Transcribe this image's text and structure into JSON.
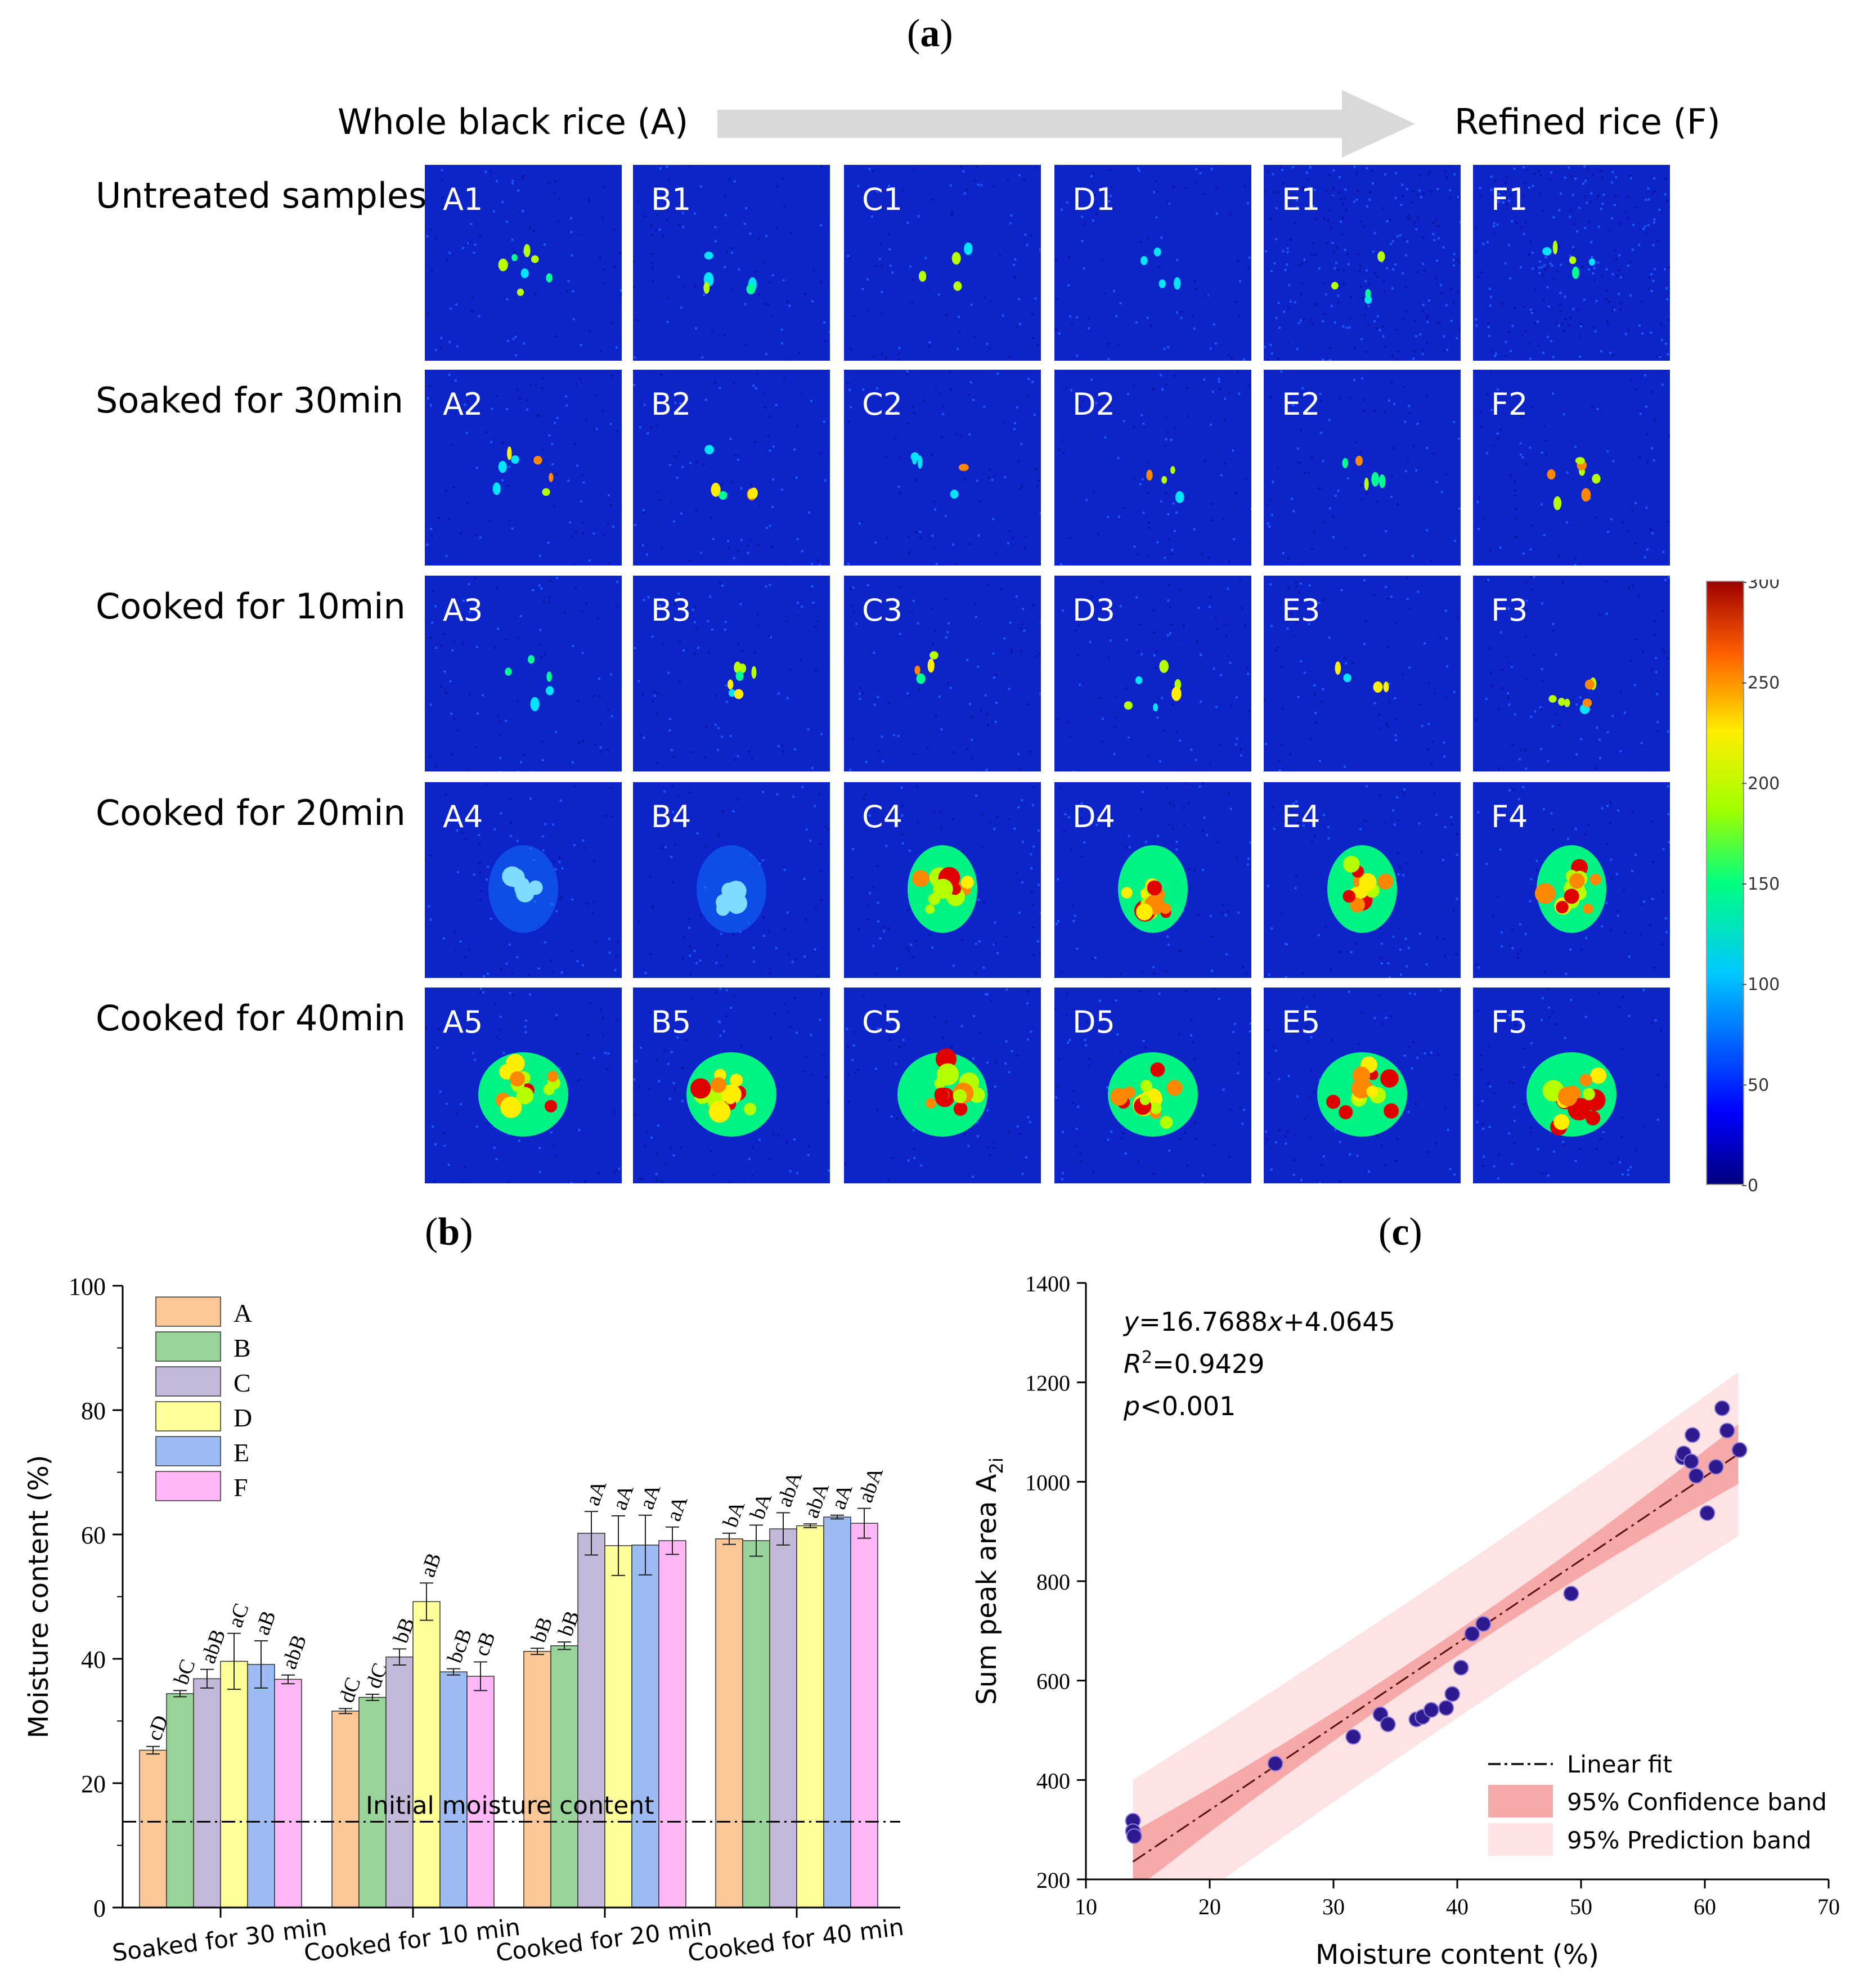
{
  "panel_a": {
    "letter": "a",
    "start_label": "Whole black rice (A)",
    "end_label": "Refined rice (F)",
    "row_labels": [
      "Untreated samples",
      "Soaked for 30min",
      "Cooked for 10min",
      "Cooked for 20min",
      "Cooked for 40min"
    ],
    "column_letters": [
      "A",
      "B",
      "C",
      "D",
      "E",
      "F"
    ],
    "tiles": [
      [
        "A1",
        "B1",
        "C1",
        "D1",
        "E1",
        "F1"
      ],
      [
        "A2",
        "B2",
        "C2",
        "D2",
        "E2",
        "F2"
      ],
      [
        "A3",
        "B3",
        "C3",
        "D3",
        "E3",
        "F3"
      ],
      [
        "A4",
        "B4",
        "C4",
        "D4",
        "E4",
        "F4"
      ],
      [
        "A5",
        "B5",
        "C5",
        "D5",
        "E5",
        "F5"
      ]
    ],
    "colorbar_ticks": [
      "300",
      "250",
      "200",
      "150",
      "100",
      "50",
      "0"
    ],
    "colorbar_range": [
      0,
      300
    ],
    "colors": {
      "background": "#0d24c8",
      "arrow": "#d9d9d9"
    }
  },
  "chart_data": [
    {
      "type": "bar",
      "panel": "b",
      "ylabel": "Moisture content (%)",
      "ylim": [
        0,
        100
      ],
      "yticks": [
        "0",
        "20",
        "40",
        "60",
        "80",
        "100"
      ],
      "categories": [
        "Soaked for 30 min",
        "Cooked for 10 min",
        "Cooked for 20 min",
        "Cooked for 40 min"
      ],
      "legend_position": "top-left",
      "reference_line": {
        "label": "Initial moisture content",
        "value": 13.8
      },
      "series": [
        {
          "name": "A",
          "color": "#fbc796",
          "values": [
            25.3,
            31.6,
            41.2,
            59.3
          ],
          "errors": [
            0.6,
            0.4,
            0.5,
            0.9
          ],
          "letters": [
            "cD",
            "dC",
            "bB",
            "bA"
          ]
        },
        {
          "name": "B",
          "color": "#98d49a",
          "values": [
            34.4,
            33.8,
            42.1,
            59.0
          ],
          "errors": [
            0.5,
            0.5,
            0.6,
            2.5
          ],
          "letters": [
            "bC",
            "dC",
            "bB",
            "bA"
          ]
        },
        {
          "name": "C",
          "color": "#c4b8d8",
          "values": [
            36.8,
            40.3,
            60.2,
            60.9
          ],
          "errors": [
            1.5,
            1.3,
            3.5,
            2.6
          ],
          "letters": [
            "abB",
            "bB",
            "aA",
            "abA"
          ]
        },
        {
          "name": "D",
          "color": "#ffff9a",
          "values": [
            39.6,
            49.2,
            58.2,
            61.4
          ],
          "errors": [
            4.5,
            3.0,
            4.8,
            0.3
          ],
          "letters": [
            "aC",
            "aB",
            "aA",
            "abA"
          ]
        },
        {
          "name": "E",
          "color": "#9bbbf2",
          "values": [
            39.1,
            37.9,
            58.3,
            62.8
          ],
          "errors": [
            3.8,
            0.5,
            4.8,
            0.3
          ],
          "letters": [
            "aB",
            "bcB",
            "aA",
            "aA"
          ]
        },
        {
          "name": "F",
          "color": "#ffb7f7",
          "values": [
            36.7,
            37.2,
            59.0,
            61.8
          ],
          "errors": [
            0.7,
            2.3,
            2.2,
            2.4
          ],
          "letters": [
            "abB",
            "cB",
            "aA",
            "abA"
          ]
        }
      ]
    },
    {
      "type": "scatter",
      "panel": "c",
      "xlabel": "Moisture content (%)",
      "ylabel_main": "Sum peak area A",
      "ylabel_sub": "2i",
      "xlim": [
        10,
        70
      ],
      "ylim": [
        200,
        1400
      ],
      "xticks": [
        "10",
        "20",
        "30",
        "40",
        "50",
        "60",
        "70"
      ],
      "yticks": [
        "200",
        "400",
        "600",
        "800",
        "1000",
        "1200",
        "1400"
      ],
      "equation": {
        "y": "y",
        "eq": "=16.7688",
        "x": "x",
        "rest": "+4.0645"
      },
      "r2": {
        "r": "R",
        "sup": "2",
        "val": "=0.9429"
      },
      "pvalue": {
        "p": "p",
        "val": "<0.001"
      },
      "fit": {
        "slope": 16.7688,
        "intercept": 4.0645,
        "x_range": [
          13.8,
          62.7
        ]
      },
      "legend": {
        "fit": "Linear fit",
        "confidence": "95% Confidence band",
        "prediction": "95% Prediction band"
      },
      "colors": {
        "point": "#2e1a8e",
        "confidence": "#f7a8a8",
        "prediction": "#fde3e3",
        "fit_line": "#5a1010"
      },
      "points": [
        [
          13.8,
          318
        ],
        [
          13.8,
          297
        ],
        [
          13.9,
          287
        ],
        [
          25.3,
          433
        ],
        [
          31.6,
          487
        ],
        [
          33.8,
          532
        ],
        [
          34.4,
          512
        ],
        [
          36.7,
          522
        ],
        [
          37.2,
          527
        ],
        [
          37.9,
          541
        ],
        [
          39.1,
          545
        ],
        [
          39.6,
          573
        ],
        [
          40.3,
          626
        ],
        [
          41.2,
          694
        ],
        [
          42.1,
          714
        ],
        [
          49.2,
          775
        ],
        [
          58.2,
          1049
        ],
        [
          58.3,
          1057
        ],
        [
          58.9,
          1041
        ],
        [
          59.0,
          1094
        ],
        [
          59.3,
          1012
        ],
        [
          60.2,
          937
        ],
        [
          60.9,
          1030
        ],
        [
          61.4,
          1148
        ],
        [
          61.8,
          1103
        ],
        [
          62.8,
          1064
        ]
      ]
    }
  ]
}
